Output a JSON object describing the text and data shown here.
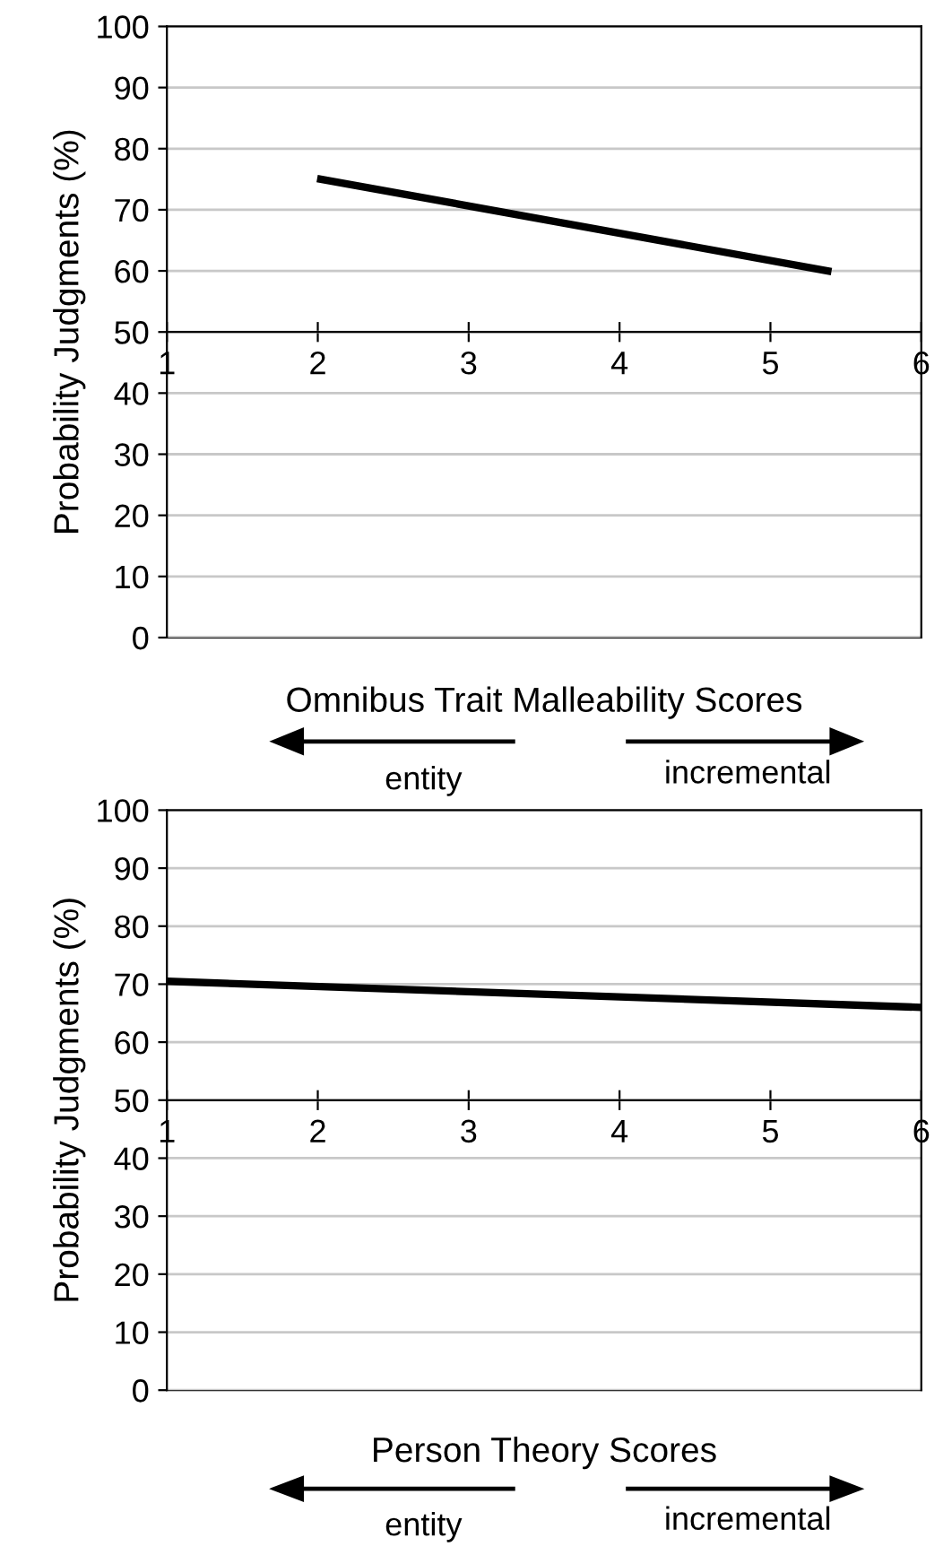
{
  "chart_data": [
    {
      "type": "line",
      "xlabel": "Omnibus Trait Malleability Scores",
      "ylabel": "Probability Judgments (%)",
      "series": [
        {
          "color": "#000000",
          "x": [
            2.02,
            5.38
          ],
          "values": [
            75,
            60
          ]
        }
      ],
      "xlim": [
        1,
        6
      ],
      "xticks": [
        1,
        2,
        3,
        4,
        5,
        6
      ],
      "ylim": [
        0,
        100
      ],
      "yticks": [
        0,
        10,
        20,
        30,
        40,
        50,
        60,
        70,
        80,
        90,
        100
      ],
      "grid": "y",
      "marker": "none",
      "line_style": "solid",
      "annotations": [
        "entity",
        "incremental"
      ]
    },
    {
      "type": "line",
      "xlabel": "Person Theory Scores",
      "ylabel": "Probability Judgments (%)",
      "series": [
        {
          "color": "#000000",
          "x": [
            1,
            6
          ],
          "values": [
            70.5,
            66
          ]
        }
      ],
      "xlim": [
        1,
        6
      ],
      "xticks": [
        1,
        2,
        3,
        4,
        5,
        6
      ],
      "ylim": [
        0,
        100
      ],
      "yticks": [
        0,
        10,
        20,
        30,
        40,
        50,
        60,
        70,
        80,
        90,
        100
      ],
      "grid": "y",
      "marker": "none",
      "line_style": "solid",
      "annotations": [
        "entity",
        "incremental"
      ]
    }
  ]
}
